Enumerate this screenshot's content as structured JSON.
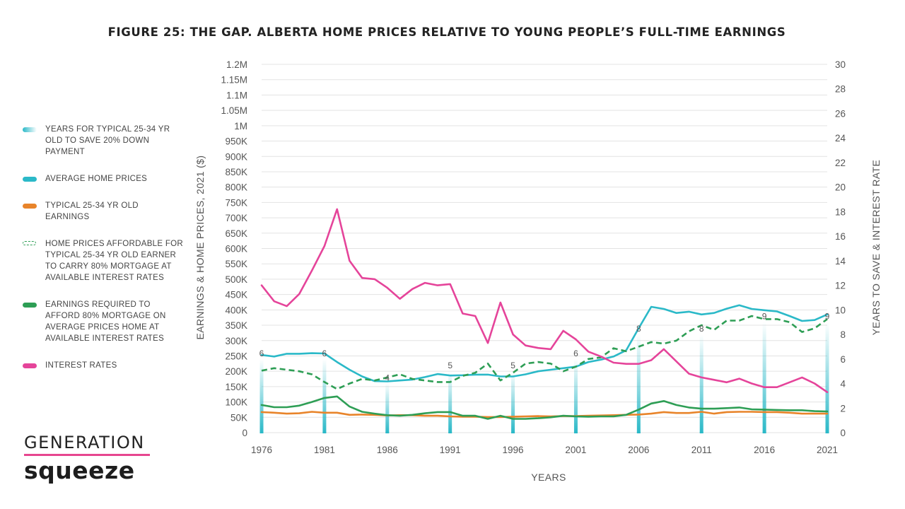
{
  "title": "FIGURE 25: THE GAP. ALBERTA HOME PRICES RELATIVE TO YOUNG PEOPLE’S FULL-TIME EARNINGS",
  "brand": {
    "top": "GENERATION",
    "bottom": "squeeze",
    "accent": "#e7468f"
  },
  "legend": [
    {
      "label": "YEARS FOR TYPICAL 25-34 YR OLD TO SAVE 20% DOWN PAYMENT",
      "style": "gradient",
      "color": "#2bb9c8"
    },
    {
      "label": "AVERAGE HOME PRICES",
      "style": "solid",
      "color": "#2bb9c8"
    },
    {
      "label": "TYPICAL 25-34 YR OLD EARNINGS",
      "style": "solid",
      "color": "#e8842a"
    },
    {
      "label": "HOME PRICES AFFORDABLE FOR TYPICAL 25-34 YR OLD EARNER TO CARRY 80% MORTGAGE AT AVAILABLE INTEREST RATES",
      "style": "dashed",
      "color": "#2e9e55"
    },
    {
      "label": "EARNINGS REQUIRED TO AFFORD 80% MORTGAGE ON AVERAGE PRICES HOME AT AVAILABLE INTEREST RATES",
      "style": "solid",
      "color": "#2e9e55"
    },
    {
      "label": "INTEREST RATES",
      "style": "solid",
      "color": "#e5449a"
    }
  ],
  "chart_data": {
    "type": "line",
    "xlabel": "YEARS",
    "ylabel_left": "EARNINGS & HOME PRICES, 2021 ($)",
    "ylabel_right": "YEARS TO SAVE & INTEREST RATE",
    "x": [
      1976,
      1977,
      1978,
      1979,
      1980,
      1981,
      1982,
      1983,
      1984,
      1985,
      1986,
      1987,
      1988,
      1989,
      1990,
      1991,
      1992,
      1993,
      1994,
      1995,
      1996,
      1997,
      1998,
      1999,
      2000,
      2001,
      2002,
      2003,
      2004,
      2005,
      2006,
      2007,
      2008,
      2009,
      2010,
      2011,
      2012,
      2013,
      2014,
      2015,
      2016,
      2017,
      2018,
      2019,
      2020,
      2021
    ],
    "xlim": [
      1976,
      2021
    ],
    "xticks": [
      "1976",
      "1981",
      "1986",
      "1991",
      "1996",
      "2001",
      "2006",
      "2011",
      "2016",
      "2021"
    ],
    "ylim_left": [
      0,
      1200000
    ],
    "yticks_left": [
      "0",
      "50K",
      "100K",
      "150K",
      "200K",
      "250K",
      "300K",
      "350K",
      "400K",
      "450K",
      "500K",
      "550K",
      "600K",
      "650K",
      "700K",
      "750K",
      "800K",
      "850K",
      "900K",
      "950K",
      "1M",
      "1.05M",
      "1.1M",
      "1.15M",
      "1.2M"
    ],
    "ylim_right": [
      0,
      30
    ],
    "yticks_right": [
      "0",
      "2",
      "4",
      "6",
      "8",
      "10",
      "12",
      "14",
      "16",
      "18",
      "20",
      "22",
      "24",
      "26",
      "28",
      "30"
    ],
    "grid": true,
    "series": [
      {
        "name": "AVERAGE HOME PRICES",
        "axis": "left",
        "color": "#2bb9c8",
        "style": "solid",
        "values": [
          253000,
          248000,
          257000,
          257000,
          259000,
          258000,
          230000,
          205000,
          183000,
          168000,
          167000,
          170000,
          173000,
          181000,
          191000,
          186000,
          187000,
          189000,
          189000,
          183000,
          183000,
          190000,
          200000,
          205000,
          210000,
          215000,
          230000,
          238000,
          248000,
          268000,
          340000,
          410000,
          403000,
          390000,
          394000,
          385000,
          390000,
          404000,
          415000,
          403000,
          399000,
          395000,
          380000,
          364000,
          367000,
          385000
        ]
      },
      {
        "name": "TYPICAL 25-34 YR OLD EARNINGS",
        "axis": "left",
        "color": "#e8842a",
        "style": "solid",
        "values": [
          67000,
          65000,
          62000,
          63000,
          68000,
          65000,
          65000,
          58000,
          59000,
          58000,
          56000,
          57000,
          57000,
          55000,
          55000,
          53000,
          52000,
          52000,
          51000,
          51000,
          52000,
          53000,
          54000,
          53000,
          54000,
          54000,
          55000,
          56000,
          57000,
          58000,
          59000,
          62000,
          67000,
          64000,
          64000,
          68000,
          62000,
          67000,
          68000,
          68000,
          67000,
          67000,
          65000,
          62000,
          62000,
          62000
        ]
      },
      {
        "name": "HOME PRICES AFFORDABLE FOR TYPICAL 25-34 YR OLD EARNER TO CARRY 80% MORTGAGE AT AVAILABLE INTEREST RATES",
        "axis": "left",
        "color": "#2e9e55",
        "style": "dashed",
        "values": [
          202000,
          210000,
          205000,
          200000,
          190000,
          165000,
          142000,
          160000,
          175000,
          170000,
          180000,
          190000,
          175000,
          170000,
          165000,
          165000,
          185000,
          195000,
          225000,
          170000,
          195000,
          225000,
          230000,
          225000,
          200000,
          215000,
          240000,
          245000,
          275000,
          265000,
          280000,
          295000,
          290000,
          300000,
          330000,
          350000,
          335000,
          365000,
          365000,
          380000,
          370000,
          370000,
          360000,
          328000,
          340000,
          370000
        ]
      },
      {
        "name": "EARNINGS REQUIRED TO AFFORD 80% MORTGAGE ON AVERAGE PRICES HOME AT AVAILABLE INTEREST RATES",
        "axis": "left",
        "color": "#2e9e55",
        "style": "solid",
        "values": [
          90000,
          83000,
          83000,
          88000,
          100000,
          113000,
          118000,
          85000,
          68000,
          62000,
          57000,
          55000,
          58000,
          63000,
          67000,
          67000,
          55000,
          55000,
          45000,
          55000,
          45000,
          45000,
          47000,
          50000,
          55000,
          53000,
          52000,
          53000,
          53000,
          58000,
          75000,
          95000,
          103000,
          90000,
          82000,
          78000,
          78000,
          80000,
          82000,
          76000,
          75000,
          74000,
          73000,
          73000,
          70000,
          69000
        ]
      },
      {
        "name": "INTEREST RATES",
        "axis": "right",
        "color": "#e5449a",
        "style": "solid",
        "values": [
          12.0,
          10.7,
          10.3,
          11.3,
          13.2,
          15.2,
          18.2,
          14.0,
          12.6,
          12.5,
          11.8,
          10.9,
          11.7,
          12.2,
          12.0,
          12.1,
          9.7,
          9.5,
          7.3,
          10.6,
          8.0,
          7.1,
          6.9,
          6.8,
          8.3,
          7.6,
          6.6,
          6.2,
          5.7,
          5.6,
          5.6,
          5.9,
          6.8,
          5.8,
          4.8,
          4.5,
          4.3,
          4.1,
          4.4,
          4.0,
          3.7,
          3.7,
          4.1,
          4.5,
          4.0,
          3.3
        ]
      }
    ],
    "bars": {
      "name": "YEARS FOR TYPICAL 25-34 YR OLD TO SAVE 20% DOWN PAYMENT",
      "axis": "right",
      "color": "#2bb9c8",
      "x": [
        1976,
        1981,
        1986,
        1991,
        1996,
        2001,
        2006,
        2011,
        2016,
        2021
      ],
      "values": [
        6,
        6,
        4,
        5,
        5,
        6,
        8,
        8,
        9,
        9
      ],
      "labels": [
        "6",
        "6",
        "4",
        "5",
        "5",
        "6",
        "8",
        "8",
        "9",
        "9"
      ]
    }
  }
}
